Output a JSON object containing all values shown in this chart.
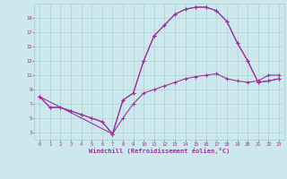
{
  "xlabel": "Windchill (Refroidissement éolien,°C)",
  "background_color": "#cce8ec",
  "line_color": "#993399",
  "grid_color": "#aacccc",
  "xlim": [
    -0.5,
    23.5
  ],
  "ylim": [
    2.0,
    21.0
  ],
  "xticks": [
    0,
    1,
    2,
    3,
    4,
    5,
    6,
    7,
    8,
    9,
    10,
    11,
    12,
    13,
    14,
    15,
    16,
    17,
    18,
    19,
    20,
    21,
    22,
    23
  ],
  "yticks": [
    3,
    5,
    7,
    9,
    11,
    13,
    15,
    17,
    19
  ],
  "series1_x": [
    0,
    1,
    2,
    3,
    4,
    5,
    6,
    7,
    8,
    9,
    10,
    11,
    12,
    13,
    14,
    15,
    16,
    17,
    18,
    19,
    20,
    21,
    22,
    23
  ],
  "series1_y": [
    8.0,
    6.5,
    6.5,
    6.0,
    5.5,
    5.0,
    4.5,
    2.8,
    5.0,
    7.0,
    8.5,
    9.0,
    9.5,
    10.0,
    10.5,
    10.8,
    11.0,
    11.2,
    10.5,
    10.2,
    10.0,
    10.2,
    11.0,
    11.0
  ],
  "series2_x": [
    0,
    1,
    2,
    3,
    4,
    5,
    6,
    7,
    8,
    9,
    10,
    11,
    12,
    13,
    14,
    15,
    16,
    17,
    18,
    19,
    20,
    21,
    22,
    23
  ],
  "series2_y": [
    8.0,
    6.5,
    6.5,
    6.0,
    5.5,
    5.0,
    4.5,
    2.8,
    7.5,
    8.5,
    13.0,
    16.5,
    18.0,
    19.5,
    20.2,
    20.5,
    20.5,
    20.0,
    18.5,
    15.5,
    13.0,
    10.0,
    10.2,
    10.5
  ],
  "series3_x": [
    0,
    7,
    8,
    9,
    10,
    11,
    12,
    13,
    14,
    15,
    16,
    17,
    18,
    19,
    20,
    21,
    22,
    23
  ],
  "series3_y": [
    8.0,
    2.8,
    7.5,
    8.5,
    13.0,
    16.5,
    18.0,
    19.5,
    20.2,
    20.5,
    20.5,
    20.0,
    18.5,
    15.5,
    13.0,
    10.0,
    10.2,
    10.5
  ]
}
